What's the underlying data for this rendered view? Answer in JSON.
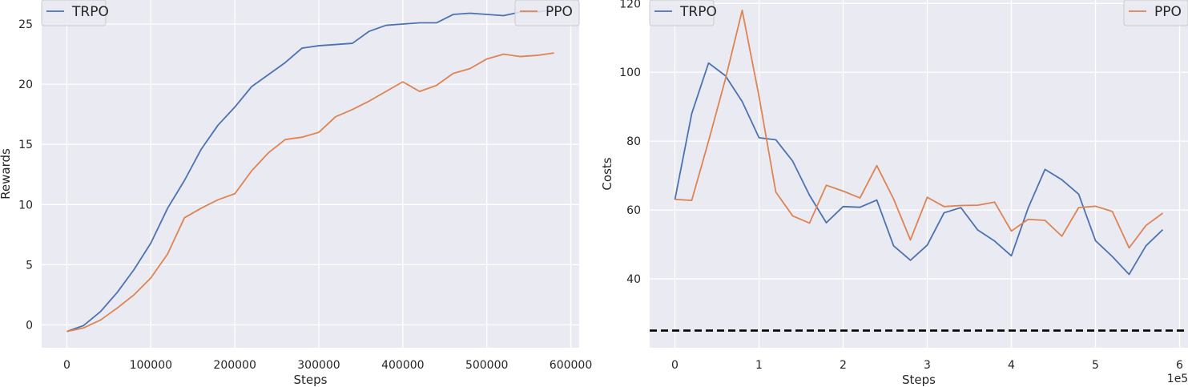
{
  "chart_data": [
    {
      "type": "line",
      "xlabel": "Steps",
      "ylabel": "Rewards",
      "xlim": [
        -30000,
        610000
      ],
      "ylim": [
        -1.9,
        27
      ],
      "xticks": [
        0,
        100000,
        200000,
        300000,
        400000,
        500000,
        600000
      ],
      "xtick_labels": [
        "0",
        "100000",
        "200000",
        "300000",
        "400000",
        "500000",
        "600000"
      ],
      "yticks": [
        0,
        5,
        10,
        15,
        20,
        25
      ],
      "ytick_labels": [
        "0",
        "5",
        "10",
        "15",
        "20",
        "25"
      ],
      "grid": true,
      "legend": [
        "top-left",
        "top-right"
      ],
      "x": [
        0,
        20000,
        40000,
        60000,
        80000,
        100000,
        120000,
        140000,
        160000,
        180000,
        200000,
        220000,
        240000,
        260000,
        280000,
        300000,
        320000,
        340000,
        360000,
        380000,
        400000,
        420000,
        440000,
        460000,
        480000,
        500000,
        520000,
        540000,
        560000,
        580000
      ],
      "series": [
        {
          "name": "TRPO",
          "color": "#4c72b0",
          "values": [
            -0.55,
            -0.05,
            1.1,
            2.7,
            4.6,
            6.8,
            9.7,
            12.0,
            14.6,
            16.6,
            18.1,
            19.8,
            20.8,
            21.8,
            23.0,
            23.2,
            23.3,
            23.4,
            24.4,
            24.9,
            25.0,
            25.1,
            25.1,
            25.8,
            25.9,
            25.8,
            25.7,
            26.0,
            26.0,
            26.2
          ]
        },
        {
          "name": "PPO",
          "color": "#dd8452",
          "values": [
            -0.55,
            -0.25,
            0.4,
            1.4,
            2.5,
            3.9,
            5.9,
            8.9,
            9.7,
            10.4,
            10.9,
            12.8,
            14.3,
            15.4,
            15.6,
            16.0,
            17.3,
            17.9,
            18.6,
            19.4,
            20.2,
            19.4,
            19.9,
            20.9,
            21.3,
            22.1,
            22.5,
            22.3,
            22.4,
            22.6
          ]
        }
      ]
    },
    {
      "type": "line",
      "xlabel": "Steps",
      "ylabel": "Costs",
      "offset_text": "1e5",
      "xlim": [
        -0.3,
        6.1
      ],
      "ylim": [
        20,
        121
      ],
      "xticks": [
        0,
        1,
        2,
        3,
        4,
        5,
        6
      ],
      "xtick_labels": [
        "0",
        "1",
        "2",
        "3",
        "4",
        "5",
        "6"
      ],
      "yticks": [
        40,
        60,
        80,
        100,
        120
      ],
      "ytick_labels": [
        "40",
        "60",
        "80",
        "100",
        "120"
      ],
      "grid": true,
      "legend": [
        "top-left",
        "top-right"
      ],
      "x": [
        0,
        0.2,
        0.4,
        0.6,
        0.8,
        1.0,
        1.2,
        1.4,
        1.6,
        1.8,
        2.0,
        2.2,
        2.4,
        2.6,
        2.8,
        3.0,
        3.2,
        3.4,
        3.6,
        3.8,
        4.0,
        4.2,
        4.4,
        4.6,
        4.8,
        5.0,
        5.2,
        5.4,
        5.6,
        5.8
      ],
      "series": [
        {
          "name": "TRPO",
          "color": "#4c72b0",
          "values": [
            63.0,
            88.0,
            102.7,
            99.0,
            91.5,
            81.0,
            80.4,
            74.2,
            64.3,
            56.3,
            61.0,
            60.8,
            62.9,
            49.6,
            45.4,
            49.8,
            59.2,
            60.7,
            54.2,
            51.0,
            46.7,
            60.6,
            71.8,
            68.8,
            64.6,
            51.1,
            46.5,
            41.3,
            49.6,
            54.3
          ]
        },
        {
          "name": "PPO",
          "color": "#dd8452",
          "values": [
            63.1,
            62.8,
            80.0,
            98.0,
            118.0,
            93.0,
            65.2,
            58.3,
            56.2,
            67.2,
            65.5,
            63.5,
            72.9,
            63.2,
            51.3,
            63.7,
            61.0,
            61.3,
            61.4,
            62.3,
            53.9,
            57.3,
            57.0,
            52.4,
            60.7,
            61.1,
            59.6,
            49.0,
            55.5,
            59.1
          ]
        }
      ],
      "reference_line": {
        "y": 25,
        "style": "dashed",
        "color": "#000000"
      }
    }
  ]
}
